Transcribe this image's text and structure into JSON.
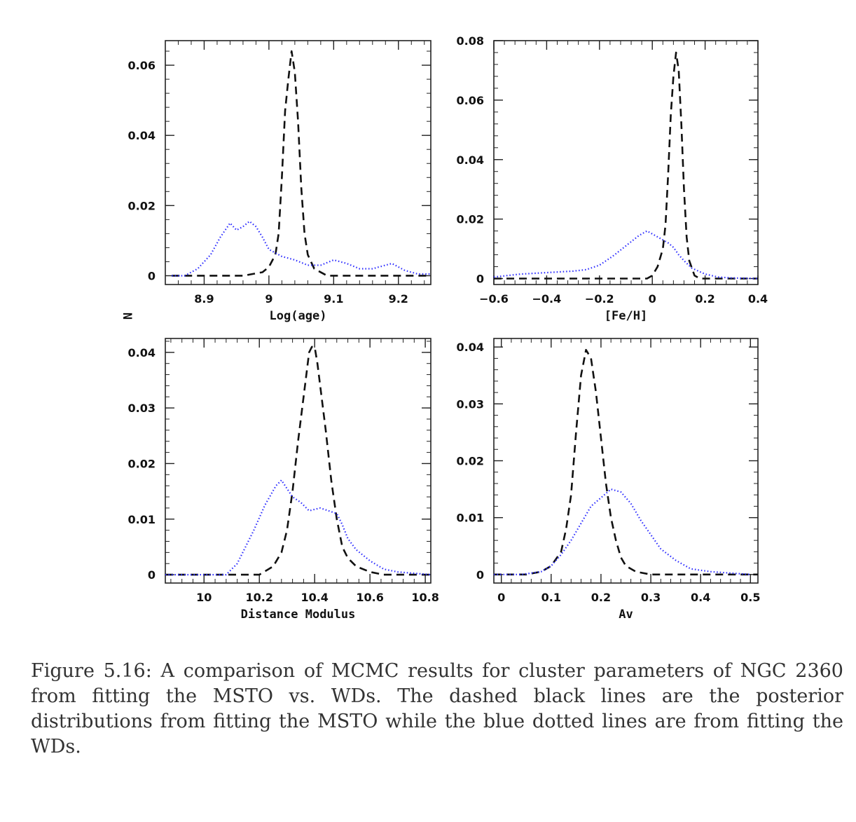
{
  "figure": {
    "ylabel": "N",
    "caption": "Figure 5.16: A comparison of MCMC results for cluster parameters of NGC 2360 from fitting the MSTO vs. WDs. The dashed black lines are the posterior distributions from fitting the MSTO while the blue dotted lines are from fitting the WDs."
  },
  "colors": {
    "msto": "#111111",
    "wd": "#2b2bff",
    "axes": "#222222"
  },
  "chart_data": [
    {
      "type": "line",
      "xlabel": "Log(age)",
      "ylabel": "",
      "xlim": [
        8.84,
        9.25
      ],
      "ylim": [
        -0.0025,
        0.067
      ],
      "xticks": [
        8.9,
        9.0,
        9.1,
        9.2
      ],
      "xtick_labels": [
        "8.9",
        "9",
        "9.1",
        "9.2"
      ],
      "yticks": [
        0,
        0.02,
        0.04,
        0.06
      ],
      "ytick_labels": [
        "0",
        "0.02",
        "0.04",
        "0.06"
      ],
      "series": [
        {
          "style": "dashed",
          "x": [
            8.85,
            8.96,
            8.99,
            9.0,
            9.01,
            9.015,
            9.02,
            9.025,
            9.03,
            9.035,
            9.04,
            9.045,
            9.05,
            9.055,
            9.06,
            9.07,
            9.09,
            9.25
          ],
          "y": [
            0,
            0,
            0.001,
            0.0025,
            0.006,
            0.012,
            0.028,
            0.047,
            0.056,
            0.064,
            0.058,
            0.044,
            0.025,
            0.012,
            0.006,
            0.002,
            0,
            0
          ]
        },
        {
          "style": "dotted",
          "x": [
            8.85,
            8.87,
            8.89,
            8.91,
            8.925,
            8.94,
            8.95,
            8.96,
            8.97,
            8.98,
            8.99,
            9.0,
            9.02,
            9.04,
            9.06,
            9.08,
            9.1,
            9.12,
            9.14,
            9.16,
            9.18,
            9.19,
            9.21,
            9.23,
            9.25
          ],
          "y": [
            0,
            0,
            0.002,
            0.006,
            0.011,
            0.015,
            0.013,
            0.014,
            0.0155,
            0.014,
            0.011,
            0.0075,
            0.0055,
            0.0045,
            0.003,
            0.003,
            0.0045,
            0.0035,
            0.002,
            0.002,
            0.003,
            0.0035,
            0.0015,
            0.0005,
            0.0005
          ]
        }
      ]
    },
    {
      "type": "line",
      "xlabel": "[Fe/H]",
      "ylabel": "",
      "xlim": [
        -0.6,
        0.4
      ],
      "ylim": [
        -0.002,
        0.08
      ],
      "xticks": [
        -0.6,
        -0.4,
        -0.2,
        0,
        0.2,
        0.4
      ],
      "xtick_labels": [
        "−0.6",
        "−0.4",
        "−0.2",
        "0",
        "0.2",
        "0.4"
      ],
      "yticks": [
        0,
        0.02,
        0.04,
        0.06,
        0.08
      ],
      "ytick_labels": [
        "0",
        "0.02",
        "0.04",
        "0.06",
        "0.08"
      ],
      "series": [
        {
          "style": "dashed",
          "x": [
            -0.6,
            -0.02,
            0.0,
            0.02,
            0.04,
            0.05,
            0.06,
            0.07,
            0.08,
            0.09,
            0.1,
            0.11,
            0.12,
            0.13,
            0.14,
            0.16,
            0.18,
            0.4
          ],
          "y": [
            0,
            0,
            0.001,
            0.004,
            0.01,
            0.018,
            0.035,
            0.055,
            0.068,
            0.076,
            0.07,
            0.052,
            0.03,
            0.014,
            0.006,
            0.001,
            0,
            0
          ]
        },
        {
          "style": "dotted",
          "x": [
            -0.6,
            -0.5,
            -0.4,
            -0.3,
            -0.25,
            -0.2,
            -0.15,
            -0.1,
            -0.05,
            -0.02,
            0.0,
            0.02,
            0.04,
            0.06,
            0.08,
            0.1,
            0.12,
            0.15,
            0.2,
            0.25,
            0.3,
            0.4
          ],
          "y": [
            0.0005,
            0.0015,
            0.002,
            0.0025,
            0.003,
            0.0045,
            0.0075,
            0.011,
            0.0145,
            0.016,
            0.015,
            0.014,
            0.013,
            0.012,
            0.0105,
            0.008,
            0.006,
            0.0035,
            0.0015,
            0.0005,
            0.0002,
            0
          ]
        }
      ]
    },
    {
      "type": "line",
      "xlabel": "Distance Modulus",
      "ylabel": "",
      "xlim": [
        9.86,
        10.82
      ],
      "ylim": [
        -0.0015,
        0.0425
      ],
      "xticks": [
        10,
        10.2,
        10.4,
        10.6,
        10.8
      ],
      "xtick_labels": [
        "10",
        "10.2",
        "10.4",
        "10.6",
        "10.8"
      ],
      "yticks": [
        0,
        0.01,
        0.02,
        0.03,
        0.04
      ],
      "ytick_labels": [
        "0",
        "0.01",
        "0.02",
        "0.03",
        "0.04"
      ],
      "series": [
        {
          "style": "dashed",
          "x": [
            9.86,
            10.2,
            10.25,
            10.28,
            10.3,
            10.32,
            10.34,
            10.36,
            10.38,
            10.39,
            10.4,
            10.41,
            10.42,
            10.44,
            10.46,
            10.48,
            10.5,
            10.52,
            10.55,
            10.6,
            10.65,
            10.82
          ],
          "y": [
            0,
            0,
            0.0015,
            0.004,
            0.008,
            0.015,
            0.024,
            0.032,
            0.04,
            0.041,
            0.041,
            0.038,
            0.034,
            0.026,
            0.017,
            0.01,
            0.005,
            0.003,
            0.0015,
            0.0005,
            0,
            0
          ]
        },
        {
          "style": "dotted",
          "x": [
            9.86,
            10.08,
            10.12,
            10.15,
            10.18,
            10.22,
            10.26,
            10.28,
            10.3,
            10.32,
            10.35,
            10.38,
            10.42,
            10.45,
            10.48,
            10.5,
            10.52,
            10.55,
            10.6,
            10.65,
            10.7,
            10.82
          ],
          "y": [
            0,
            0,
            0.002,
            0.005,
            0.008,
            0.0125,
            0.016,
            0.017,
            0.0155,
            0.014,
            0.013,
            0.0115,
            0.012,
            0.0115,
            0.011,
            0.009,
            0.0065,
            0.0045,
            0.0025,
            0.001,
            0.0005,
            0
          ]
        }
      ]
    },
    {
      "type": "line",
      "xlabel": "Av",
      "ylabel": "",
      "xlim": [
        -0.015,
        0.515
      ],
      "ylim": [
        -0.0015,
        0.0415
      ],
      "xticks": [
        0,
        0.1,
        0.2,
        0.3,
        0.4,
        0.5
      ],
      "xtick_labels": [
        "0",
        "0.1",
        "0.2",
        "0.3",
        "0.4",
        "0.5"
      ],
      "yticks": [
        0,
        0.01,
        0.02,
        0.03,
        0.04
      ],
      "ytick_labels": [
        "0",
        "0.01",
        "0.02",
        "0.03",
        "0.04"
      ],
      "series": [
        {
          "style": "dashed",
          "x": [
            -0.015,
            0.05,
            0.08,
            0.1,
            0.12,
            0.13,
            0.14,
            0.15,
            0.16,
            0.17,
            0.18,
            0.19,
            0.2,
            0.21,
            0.22,
            0.23,
            0.24,
            0.25,
            0.27,
            0.3,
            0.515
          ],
          "y": [
            0,
            0,
            0.0005,
            0.0015,
            0.004,
            0.008,
            0.014,
            0.025,
            0.035,
            0.0395,
            0.038,
            0.032,
            0.024,
            0.016,
            0.01,
            0.006,
            0.003,
            0.0015,
            0.0005,
            0,
            0
          ]
        },
        {
          "style": "dotted",
          "x": [
            -0.015,
            0.04,
            0.08,
            0.1,
            0.12,
            0.14,
            0.16,
            0.18,
            0.2,
            0.22,
            0.24,
            0.26,
            0.28,
            0.3,
            0.32,
            0.35,
            0.38,
            0.42,
            0.5
          ],
          "y": [
            0,
            0,
            0.0005,
            0.0015,
            0.0035,
            0.006,
            0.009,
            0.012,
            0.0135,
            0.015,
            0.0145,
            0.0125,
            0.0095,
            0.007,
            0.0045,
            0.0025,
            0.001,
            0.0005,
            0
          ]
        }
      ]
    }
  ]
}
